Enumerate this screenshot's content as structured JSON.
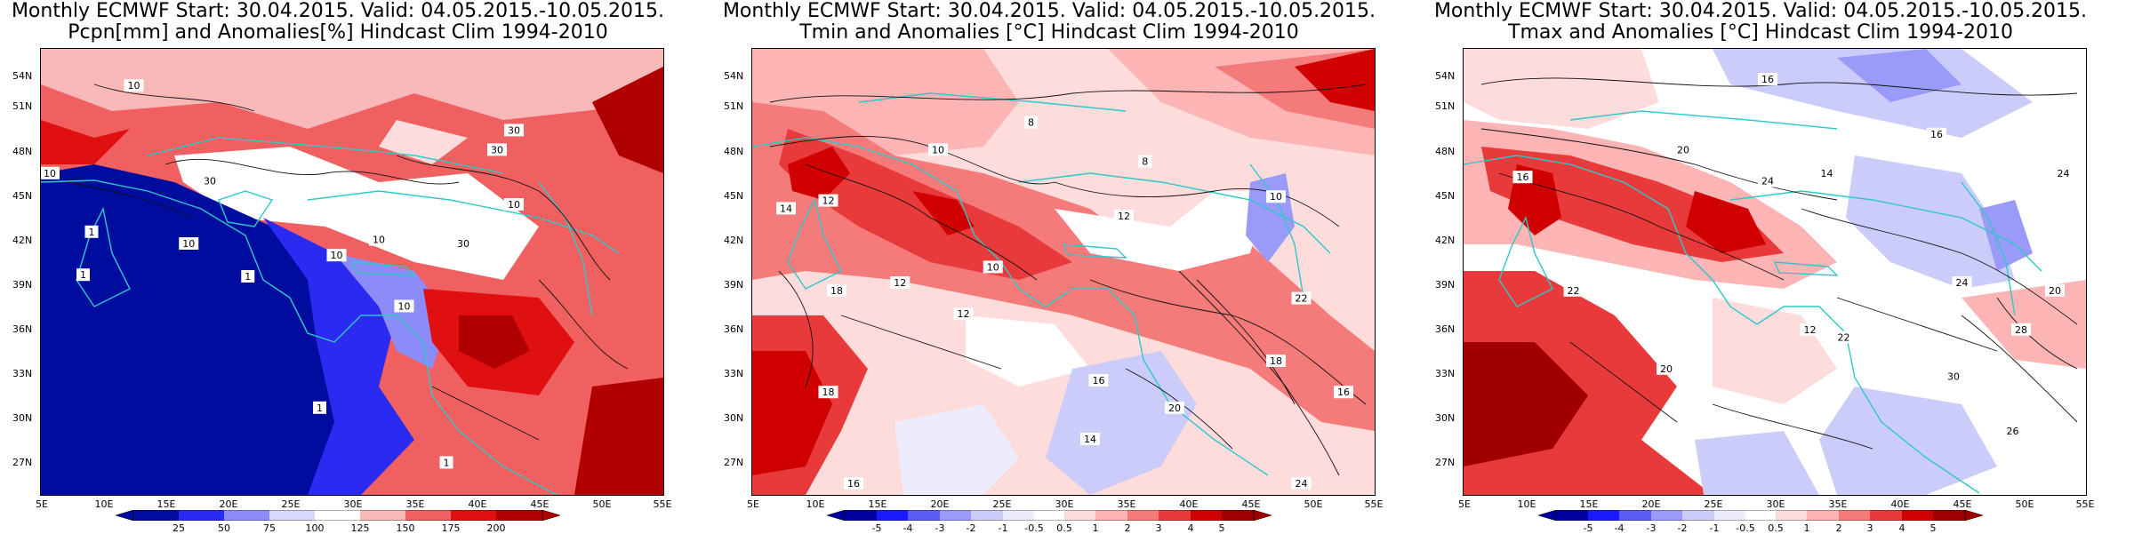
{
  "panels": [
    {
      "title_line1": "Monthly ECMWF Start: 30.04.2015. Valid: 04.05.2015.-10.05.2015.",
      "title_line2": "Pcpn[mm] and Anomalies[%] Hindcast Clim 1994-2010",
      "colorbar": [
        "25",
        "50",
        "75",
        "100",
        "125",
        "150",
        "175",
        "200"
      ],
      "contour_labels": [
        "10",
        "30",
        "30",
        "10",
        "1",
        "10",
        "1",
        "1",
        "1",
        "10",
        "30",
        "10",
        "10",
        "30",
        "1",
        "10"
      ]
    },
    {
      "title_line1": "Monthly ECMWF Start: 30.04.2015. Valid: 04.05.2015.-10.05.2015.",
      "title_line2": "Tmin and Anomalies [°C] Hindcast Clim 1994-2010",
      "colorbar": [
        "-5",
        "-4",
        "-3",
        "-2",
        "-1",
        "-0.5",
        "0.5",
        "1",
        "2",
        "3",
        "4",
        "5"
      ],
      "contour_labels": [
        "8",
        "8",
        "10",
        "12",
        "14",
        "12",
        "10",
        "12",
        "12",
        "18",
        "16",
        "14",
        "18",
        "20",
        "16",
        "18",
        "16",
        "24",
        "22",
        "10"
      ]
    },
    {
      "title_line1": "Monthly ECMWF Start: 30.04.2015. Valid: 04.05.2015.-10.05.2015.",
      "title_line2": "Tmax and Anomalies [°C] Hindcast Clim 1994-2010",
      "colorbar": [
        "-5",
        "-4",
        "-3",
        "-2",
        "-1",
        "-0.5",
        "0.5",
        "1",
        "2",
        "3",
        "4",
        "5"
      ],
      "contour_labels": [
        "16",
        "16",
        "16",
        "20",
        "22",
        "24",
        "14",
        "12",
        "22",
        "20",
        "24",
        "26",
        "30",
        "28",
        "20",
        "24"
      ]
    }
  ],
  "lat_ticks": [
    "54N",
    "51N",
    "48N",
    "45N",
    "42N",
    "39N",
    "36N",
    "33N",
    "30N",
    "27N"
  ],
  "lon_ticks": [
    "5E",
    "10E",
    "15E",
    "20E",
    "25E",
    "30E",
    "35E",
    "40E",
    "45E",
    "50E",
    "55E"
  ],
  "colors": {
    "coast": "#2ec8c8",
    "precip_scale": [
      "#000c9e",
      "#2a2af0",
      "#8c8cf8",
      "#d8d8fc",
      "#ffffff",
      "#f8b8b8",
      "#f06060",
      "#e01010",
      "#b00000"
    ],
    "temp_scale": [
      "#0000a0",
      "#1a1aff",
      "#5a5af5",
      "#9a9af8",
      "#ccccfa",
      "#ececfc",
      "#ffffff",
      "#ffdcdc",
      "#fcb4b4",
      "#f57a7a",
      "#e83a3a",
      "#d00000",
      "#a00000"
    ]
  }
}
